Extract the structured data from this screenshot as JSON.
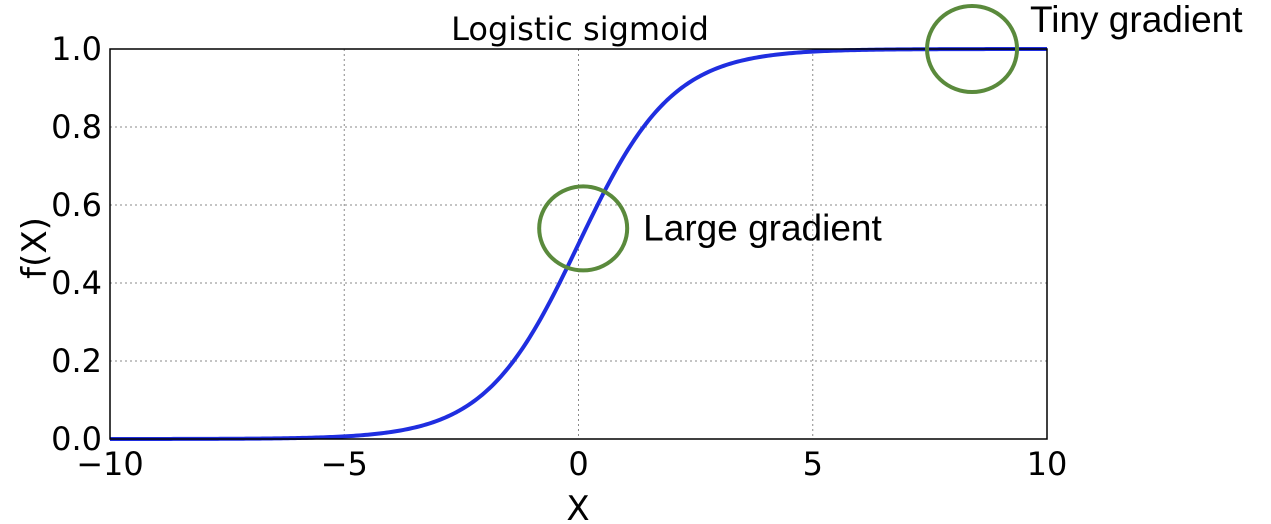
{
  "chart_data": {
    "type": "line",
    "title": "Logistic sigmoid",
    "xlabel": "X",
    "ylabel": "f(X)",
    "xlim": [
      -10,
      10
    ],
    "ylim": [
      0.0,
      1.0
    ],
    "xticks": [
      -10,
      -5,
      0,
      5,
      10
    ],
    "xtick_labels": [
      "−10",
      "−5",
      "0",
      "5",
      "10"
    ],
    "yticks": [
      0.0,
      0.2,
      0.4,
      0.6,
      0.8,
      1.0
    ],
    "ytick_labels": [
      "0.0",
      "0.2",
      "0.4",
      "0.6",
      "0.8",
      "1.0"
    ],
    "grid": true,
    "series": [
      {
        "function": "1/(1+exp(-x))",
        "color": "#1f2ee0",
        "x": [
          -10,
          -9,
          -8,
          -7,
          -6,
          -5,
          -4,
          -3,
          -2.5,
          -2,
          -1.5,
          -1,
          -0.5,
          0,
          0.5,
          1,
          1.5,
          2,
          2.5,
          3,
          4,
          5,
          6,
          7,
          8,
          9,
          10
        ],
        "y": [
          5e-05,
          0.00012,
          0.00034,
          0.00091,
          0.00247,
          0.00669,
          0.01799,
          0.04743,
          0.07586,
          0.1192,
          0.18243,
          0.26894,
          0.37754,
          0.5,
          0.62246,
          0.73106,
          0.81757,
          0.8808,
          0.92414,
          0.95257,
          0.98201,
          0.99331,
          0.99753,
          0.99909,
          0.99966,
          0.99988,
          0.99995
        ]
      }
    ],
    "annotations": [
      {
        "text": "Large gradient",
        "x": 0.1,
        "y": 0.54,
        "marker": "circle",
        "color": "#5a8a3c"
      },
      {
        "text": "Tiny gradient",
        "x": 8.4,
        "y": 1.0,
        "marker": "circle",
        "color": "#5a8a3c"
      }
    ]
  }
}
